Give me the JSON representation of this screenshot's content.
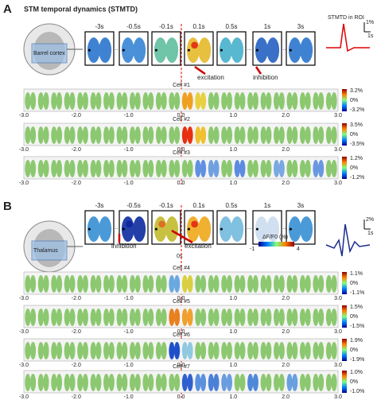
{
  "panels": [
    {
      "label": "A",
      "title": "STM temporal dynamics (STMTD)",
      "region": "Barrel cortex",
      "timepoints": [
        "-3s",
        "-0.5s",
        "-0.1s",
        "0.1s",
        "0.5s",
        "1s",
        "3s"
      ],
      "annotations": [
        "excitation",
        "inhibition"
      ],
      "trace_label": "STMTD in ROI",
      "scale_bar": [
        "1%",
        "1s"
      ],
      "rows": [
        {
          "cell": "Cell #1",
          "scale": [
            "3.2%",
            "0%",
            "-3.2%"
          ]
        },
        {
          "cell": "Cell #2",
          "scale": [
            "3.5%",
            "0%",
            "-3.5%"
          ]
        },
        {
          "cell": "Cell #3",
          "scale": [
            "1.2%",
            "0%",
            "-1.2%"
          ]
        }
      ]
    },
    {
      "label": "B",
      "region": "Thalamus",
      "timepoints": [
        "-3s",
        "-0.5s",
        "-0.1s",
        "0.1s",
        "0.5s",
        "1s",
        "3s"
      ],
      "annotations": [
        "inhibition",
        "excitation"
      ],
      "center_label": "0s",
      "colorbar": {
        "title": "ΔF/F0 (%)",
        "min": "-1",
        "max": "4"
      },
      "scale_bar": [
        "2%",
        "1s"
      ],
      "rows": [
        {
          "cell": "Cell #4",
          "scale": [
            "1.1%",
            "0%",
            "-1.1%"
          ]
        },
        {
          "cell": "Cell #5",
          "scale": [
            "1.5%",
            "0%",
            "-1.5%"
          ]
        },
        {
          "cell": "Cell #6",
          "scale": [
            "1.9%",
            "0%",
            "-1.9%"
          ]
        },
        {
          "cell": "Cell #7",
          "scale": [
            "1.0%",
            "0%",
            "-1.0%"
          ]
        }
      ]
    }
  ],
  "axis_ticks": [
    "-3.0",
    "-2.0",
    "-1.0",
    "0.0",
    "1.0",
    "2.0",
    "3.0"
  ]
}
